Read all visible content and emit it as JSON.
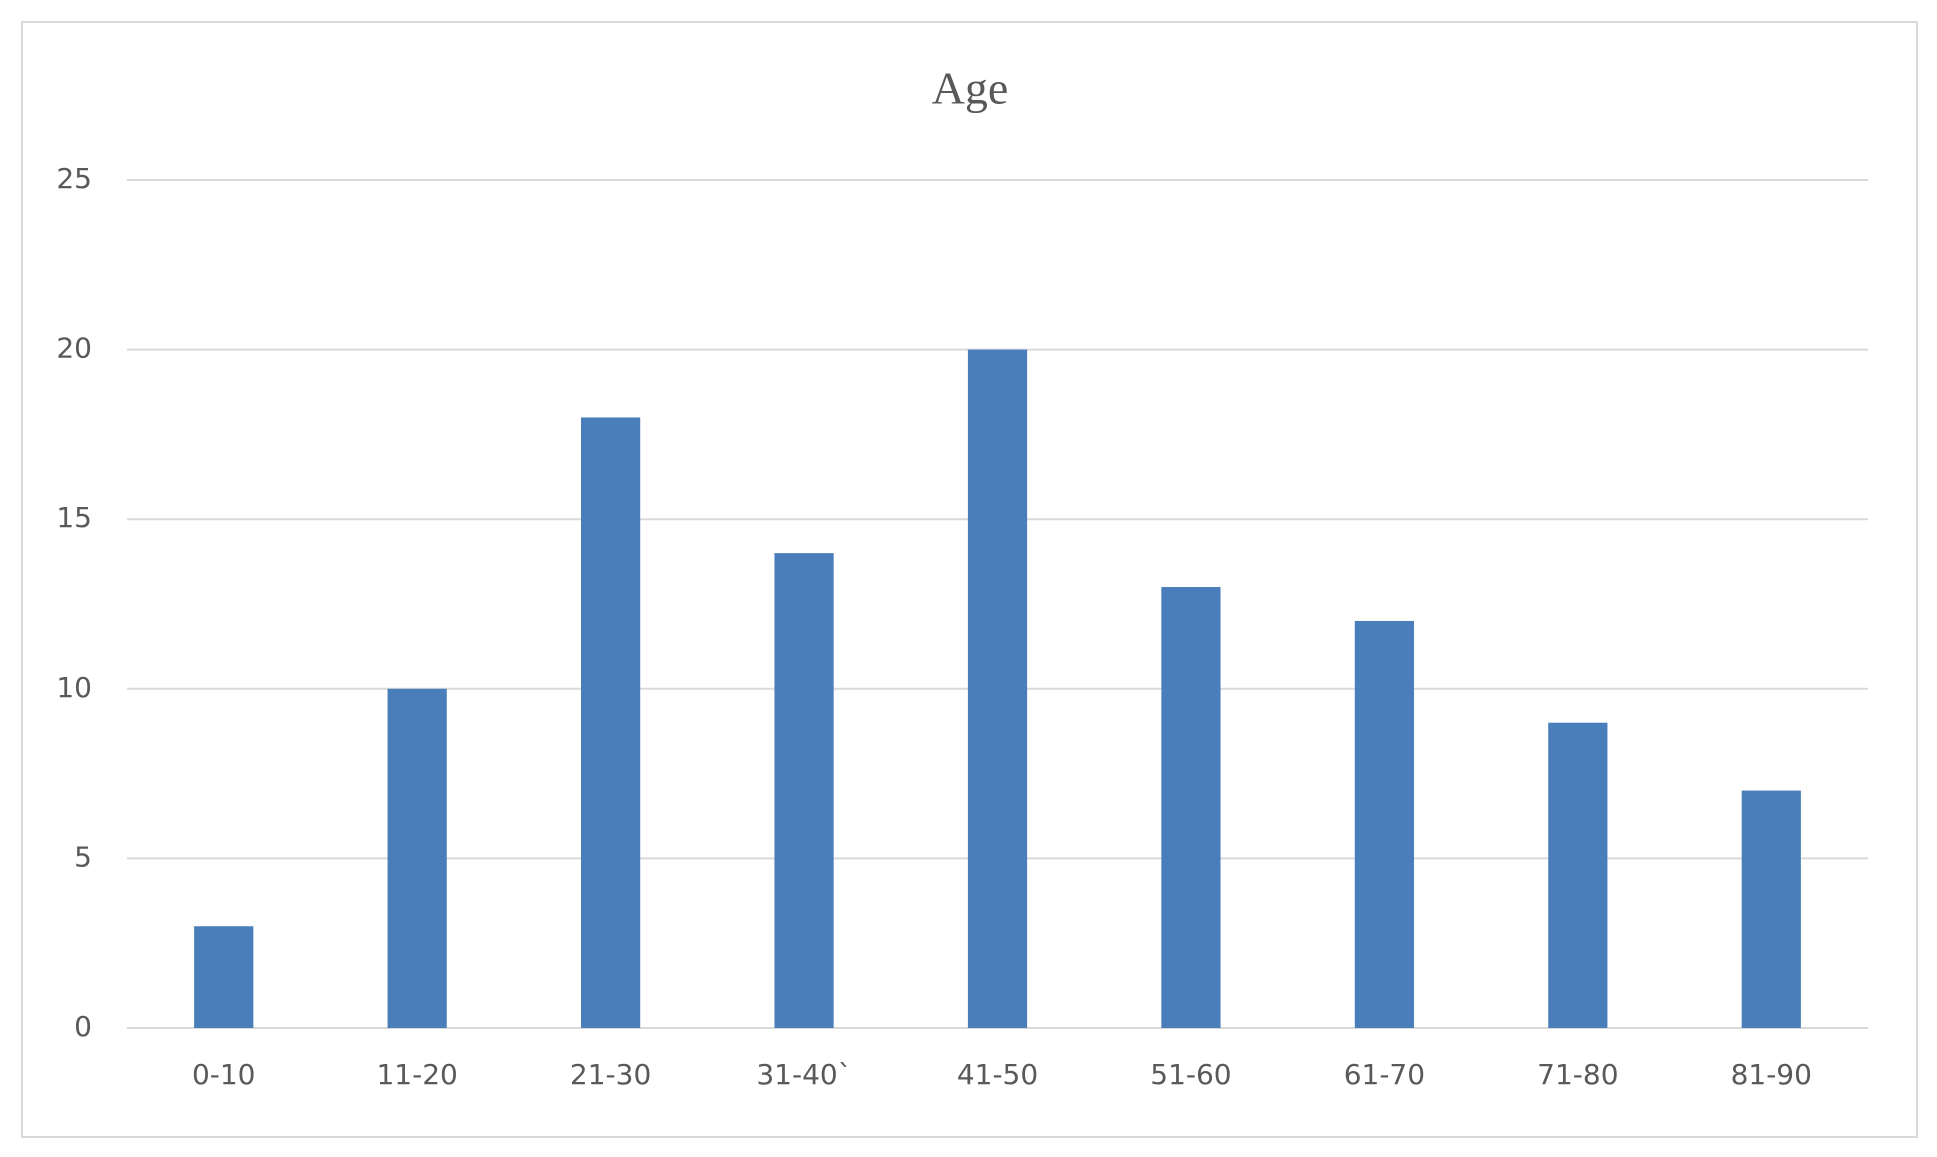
{
  "chart_data": {
    "type": "bar",
    "title": "Age",
    "categories": [
      "0-10",
      "11-20",
      "21-30",
      "31-40`",
      "41-50",
      "51-60",
      "61-70",
      "71-80",
      "81-90"
    ],
    "values": [
      3,
      10,
      18,
      14,
      20,
      13,
      12,
      9,
      7
    ],
    "color": "#4a7ebb",
    "ylim": [
      0,
      25
    ],
    "yticks": [
      0,
      5,
      10,
      15,
      20,
      25
    ],
    "grid": true
  }
}
